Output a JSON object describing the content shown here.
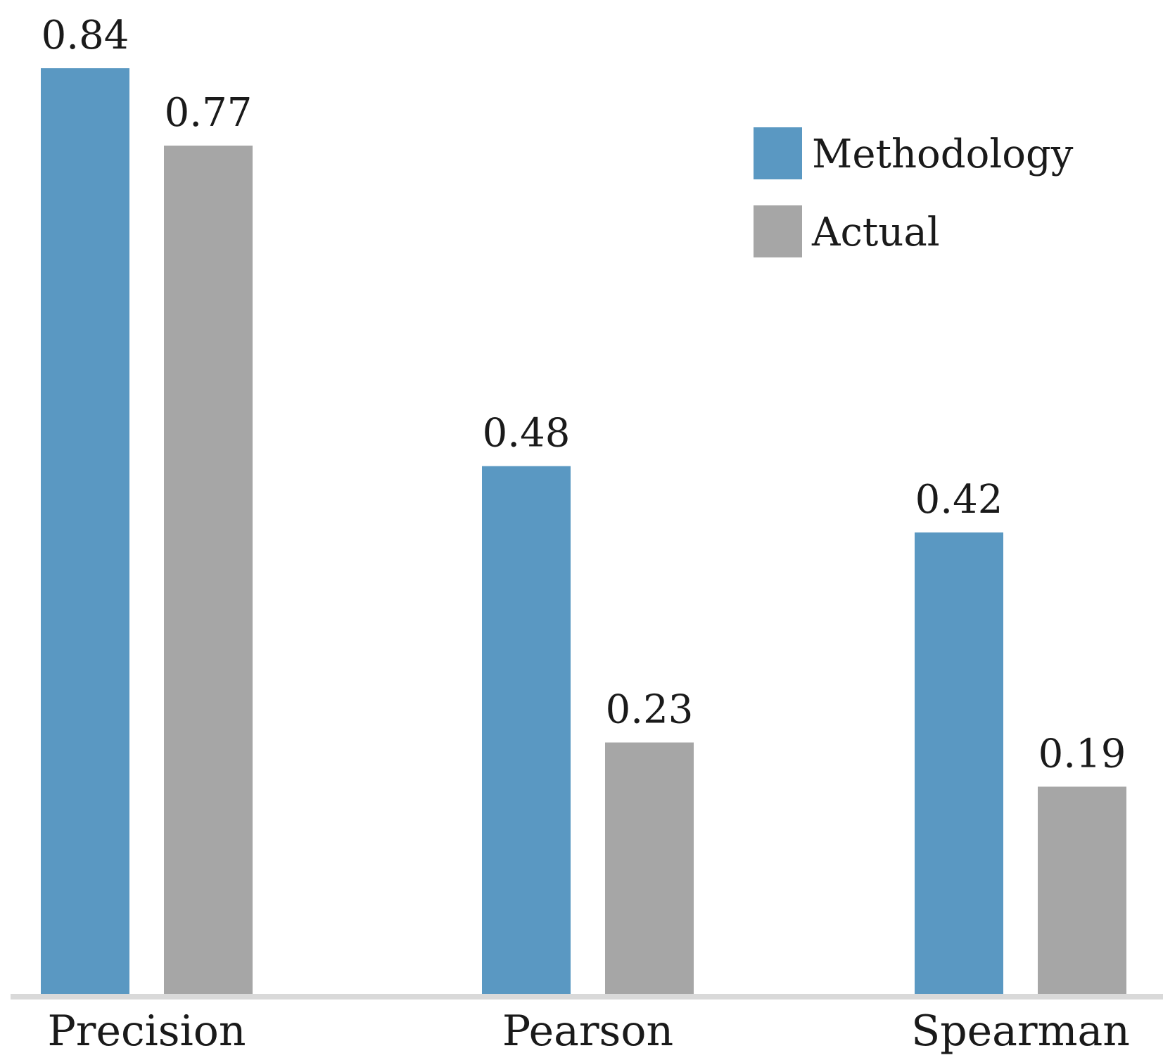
{
  "chart_data": {
    "type": "bar",
    "title": "",
    "xlabel": "",
    "ylabel": "",
    "categories": [
      "Precision",
      "Pearson",
      "Spearman"
    ],
    "series": [
      {
        "name": "Methodology",
        "color": "#5a98c2",
        "values": [
          0.84,
          0.48,
          0.42
        ],
        "labels": [
          "0.84",
          "0.48",
          "0.42"
        ]
      },
      {
        "name": "Actual",
        "color": "#a6a6a6",
        "values": [
          0.77,
          0.23,
          0.19
        ],
        "labels": [
          "0.77",
          "0.23",
          "0.19"
        ]
      }
    ],
    "ylim": [
      0,
      0.84
    ],
    "grid": false,
    "y_axis_visible": false,
    "legend_position": "top-right",
    "baseline_color": "#d9d9d9"
  }
}
